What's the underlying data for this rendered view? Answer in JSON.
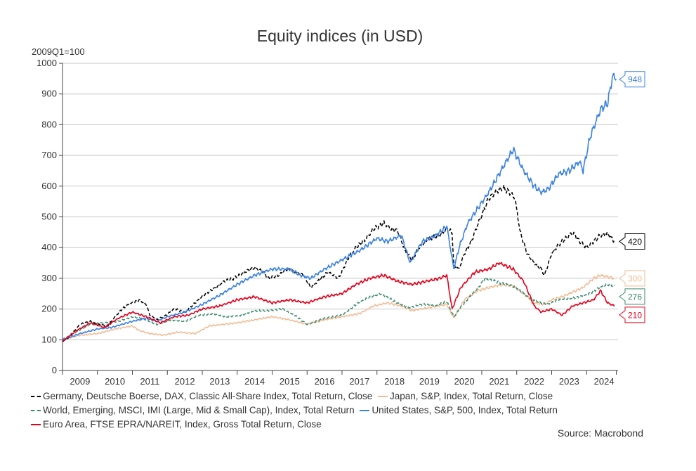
{
  "chart_data": {
    "type": "line",
    "title": "Equity indices (in USD)",
    "ylabel": "2009Q1=100",
    "xlabel": "",
    "xlim": [
      2009,
      2024.9
    ],
    "ylim": [
      0,
      1000
    ],
    "yticks": [
      0,
      100,
      200,
      300,
      400,
      500,
      600,
      700,
      800,
      900,
      1000
    ],
    "xticks": [
      "2009",
      "2010",
      "2011",
      "2012",
      "2013",
      "2014",
      "2015",
      "2016",
      "2017",
      "2018",
      "2019",
      "2020",
      "2021",
      "2022",
      "2023",
      "2024"
    ],
    "grid": true,
    "legend_position": "bottom",
    "source": "Source: Macrobond",
    "series": [
      {
        "name": "Germany, Deutsche Boerse, DAX, Classic All-Share Index, Total Return, Close",
        "color": "#000000",
        "dash": true,
        "end_label": "420",
        "x": [
          2009.0,
          2009.2,
          2009.5,
          2009.8,
          2010.0,
          2010.3,
          2010.5,
          2010.7,
          2010.9,
          2011.2,
          2011.4,
          2011.5,
          2011.7,
          2011.9,
          2012.2,
          2012.5,
          2012.8,
          2013.1,
          2013.4,
          2013.6,
          2013.9,
          2014.2,
          2014.5,
          2014.7,
          2014.9,
          2015.2,
          2015.4,
          2015.7,
          2015.9,
          2016.1,
          2016.4,
          2016.6,
          2016.9,
          2017.2,
          2017.4,
          2017.7,
          2017.9,
          2018.2,
          2018.4,
          2018.6,
          2018.8,
          2019.0,
          2019.2,
          2019.5,
          2019.8,
          2020.0,
          2020.15,
          2020.2,
          2020.35,
          2020.5,
          2020.7,
          2020.9,
          2021.2,
          2021.4,
          2021.6,
          2021.8,
          2021.95,
          2022.1,
          2022.3,
          2022.5,
          2022.7,
          2022.8,
          2023.0,
          2023.2,
          2023.4,
          2023.6,
          2023.8,
          2024.0,
          2024.2,
          2024.4,
          2024.6,
          2024.8
        ],
        "values": [
          95,
          110,
          150,
          160,
          150,
          145,
          175,
          200,
          215,
          230,
          215,
          180,
          165,
          175,
          200,
          190,
          220,
          250,
          270,
          290,
          300,
          320,
          335,
          325,
          300,
          310,
          330,
          320,
          310,
          270,
          300,
          320,
          300,
          370,
          400,
          430,
          460,
          480,
          460,
          455,
          390,
          360,
          400,
          430,
          440,
          460,
          450,
          340,
          330,
          380,
          420,
          480,
          560,
          580,
          595,
          580,
          560,
          450,
          380,
          350,
          330,
          310,
          380,
          410,
          430,
          450,
          420,
          400,
          420,
          440,
          445,
          420
        ]
      },
      {
        "name": "Japan, S&P, Index, Total Return, Close",
        "color": "#f2bb94",
        "dash": false,
        "end_label": "300",
        "x": [
          2009.0,
          2009.5,
          2010.0,
          2010.5,
          2011.0,
          2011.2,
          2011.5,
          2011.9,
          2012.3,
          2012.8,
          2013.2,
          2013.6,
          2014.0,
          2014.5,
          2015.0,
          2015.5,
          2016.0,
          2016.5,
          2017.0,
          2017.5,
          2017.9,
          2018.3,
          2018.7,
          2019.0,
          2019.5,
          2020.0,
          2020.2,
          2020.5,
          2020.9,
          2021.2,
          2021.6,
          2021.9,
          2022.2,
          2022.5,
          2022.8,
          2023.0,
          2023.3,
          2023.6,
          2023.9,
          2024.2,
          2024.4,
          2024.6,
          2024.8
        ],
        "values": [
          100,
          115,
          120,
          135,
          145,
          130,
          120,
          115,
          125,
          120,
          145,
          150,
          155,
          165,
          175,
          165,
          150,
          165,
          175,
          185,
          210,
          220,
          210,
          195,
          205,
          215,
          170,
          230,
          260,
          270,
          280,
          275,
          250,
          220,
          215,
          230,
          240,
          255,
          270,
          300,
          310,
          305,
          300
        ]
      },
      {
        "name": "World, Emerging, MSCI, IMI (Large, Mid & Small Cap), Index, Total Return",
        "color": "#3a8a6e",
        "dash": true,
        "end_label": "276",
        "x": [
          2009.0,
          2009.4,
          2009.8,
          2010.2,
          2010.6,
          2011.0,
          2011.3,
          2011.7,
          2012.1,
          2012.5,
          2012.9,
          2013.3,
          2013.7,
          2014.1,
          2014.5,
          2014.9,
          2015.3,
          2015.7,
          2016.0,
          2016.5,
          2017.0,
          2017.4,
          2017.8,
          2018.1,
          2018.5,
          2018.9,
          2019.3,
          2019.7,
          2020.0,
          2020.2,
          2020.5,
          2020.9,
          2021.1,
          2021.4,
          2021.7,
          2022.0,
          2022.3,
          2022.7,
          2022.9,
          2023.2,
          2023.5,
          2023.8,
          2024.0,
          2024.3,
          2024.6,
          2024.8
        ],
        "values": [
          100,
          125,
          150,
          155,
          160,
          175,
          170,
          150,
          165,
          160,
          180,
          185,
          175,
          180,
          195,
          195,
          200,
          175,
          150,
          170,
          180,
          215,
          240,
          250,
          225,
          205,
          215,
          210,
          225,
          175,
          220,
          270,
          300,
          290,
          280,
          270,
          240,
          220,
          215,
          230,
          235,
          240,
          245,
          265,
          280,
          276
        ]
      },
      {
        "name": "United States, S&P, 500, Index, Total Return",
        "color": "#3b82e0",
        "dash": false,
        "end_label": "948",
        "x": [
          2009.0,
          2009.5,
          2010.0,
          2010.4,
          2010.7,
          2011.0,
          2011.4,
          2011.7,
          2012.0,
          2012.5,
          2013.0,
          2013.5,
          2014.0,
          2014.5,
          2015.0,
          2015.5,
          2015.8,
          2016.1,
          2016.5,
          2017.0,
          2017.5,
          2018.0,
          2018.3,
          2018.7,
          2018.95,
          2019.3,
          2019.7,
          2020.0,
          2020.2,
          2020.35,
          2020.6,
          2020.9,
          2021.2,
          2021.5,
          2021.9,
          2022.2,
          2022.5,
          2022.7,
          2022.9,
          2023.2,
          2023.5,
          2023.8,
          2023.9,
          2024.1,
          2024.4,
          2024.6,
          2024.75,
          2024.85
        ],
        "values": [
          100,
          120,
          135,
          140,
          150,
          160,
          170,
          160,
          175,
          190,
          215,
          245,
          280,
          310,
          330,
          330,
          310,
          300,
          330,
          360,
          390,
          430,
          420,
          440,
          350,
          420,
          440,
          470,
          330,
          400,
          480,
          530,
          580,
          640,
          720,
          650,
          600,
          580,
          590,
          640,
          650,
          680,
          650,
          760,
          850,
          870,
          960,
          948
        ]
      },
      {
        "name": "Euro Area, FTSE EPRA/NAREIT, Index, Gross Total Return, Close",
        "color": "#e3001b",
        "dash": false,
        "end_label": "210",
        "x": [
          2009.0,
          2009.4,
          2009.8,
          2010.2,
          2010.6,
          2011.0,
          2011.4,
          2011.8,
          2012.2,
          2012.6,
          2013.0,
          2013.5,
          2014.0,
          2014.5,
          2015.0,
          2015.5,
          2016.0,
          2016.5,
          2017.0,
          2017.4,
          2017.8,
          2018.2,
          2018.6,
          2019.0,
          2019.4,
          2019.8,
          2020.0,
          2020.15,
          2020.4,
          2020.8,
          2021.2,
          2021.5,
          2021.9,
          2022.2,
          2022.5,
          2022.7,
          2023.0,
          2023.3,
          2023.6,
          2023.9,
          2024.2,
          2024.4,
          2024.6,
          2024.8
        ],
        "values": [
          95,
          130,
          155,
          140,
          170,
          190,
          175,
          155,
          175,
          180,
          200,
          210,
          230,
          240,
          220,
          230,
          220,
          240,
          250,
          280,
          300,
          310,
          290,
          280,
          290,
          300,
          310,
          200,
          270,
          320,
          330,
          350,
          330,
          290,
          210,
          190,
          200,
          180,
          210,
          220,
          230,
          260,
          220,
          210
        ]
      }
    ]
  }
}
